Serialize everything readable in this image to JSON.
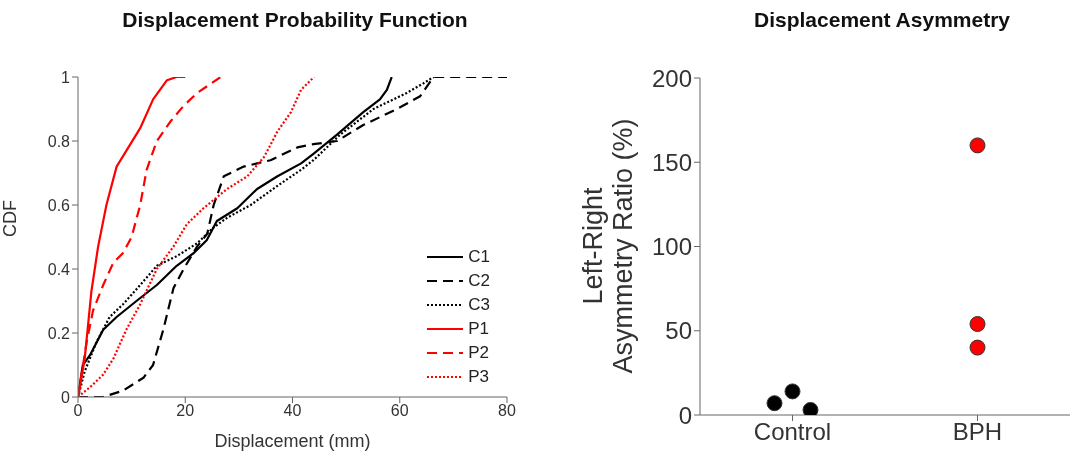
{
  "chart_data": [
    {
      "type": "line",
      "title": "Displacement Probability Function",
      "xlabel": "Displacement (mm)",
      "ylabel": "CDF",
      "xlim": [
        0,
        80
      ],
      "xticks": [
        0,
        20,
        40,
        60,
        80
      ],
      "ylim": [
        0,
        1
      ],
      "yticks": [
        0,
        0.2,
        0.4,
        0.6,
        0.8,
        1
      ],
      "legend": "bottom right",
      "marker": "none",
      "series": [
        {
          "name": "C1",
          "color": "#000000",
          "line_style": "solid",
          "x": [
            0,
            0.9,
            2.2,
            4.7,
            7.2,
            10.9,
            14.7,
            18.4,
            21.6,
            24,
            25.9,
            29.7,
            33.4,
            37.2,
            41.6,
            43.9,
            48.3,
            53.2,
            56.3,
            57.6,
            58.5
          ],
          "values": [
            0,
            0.1,
            0.13,
            0.21,
            0.25,
            0.3,
            0.35,
            0.41,
            0.45,
            0.49,
            0.55,
            0.59,
            0.65,
            0.69,
            0.73,
            0.76,
            0.82,
            0.89,
            0.93,
            0.96,
            1
          ]
        },
        {
          "name": "C2",
          "color": "#000000",
          "line_style": "dashed",
          "x": [
            0,
            4.7,
            8.4,
            12.2,
            14,
            15.9,
            17.8,
            19.7,
            22.2,
            24.1,
            25.3,
            27.2,
            30.9,
            35.9,
            40.9,
            43.9,
            48.3,
            53.2,
            59.5,
            63.8,
            66.3,
            80
          ],
          "values": [
            0,
            0,
            0.02,
            0.06,
            0.1,
            0.21,
            0.34,
            0.4,
            0.47,
            0.51,
            0.6,
            0.69,
            0.72,
            0.74,
            0.78,
            0.79,
            0.8,
            0.85,
            0.9,
            0.94,
            1,
            1
          ]
        },
        {
          "name": "C3",
          "color": "#000000",
          "line_style": "dotted",
          "x": [
            0,
            1.25,
            3.4,
            5.9,
            8.4,
            11.6,
            14.7,
            18.4,
            22.2,
            25.3,
            27.8,
            32.2,
            37.2,
            41.6,
            43.9,
            48.9,
            55.1,
            61.3,
            64.4,
            66.3
          ],
          "values": [
            0,
            0.08,
            0.17,
            0.25,
            0.29,
            0.35,
            0.41,
            0.44,
            0.48,
            0.53,
            0.56,
            0.6,
            0.66,
            0.71,
            0.74,
            0.82,
            0.9,
            0.95,
            0.98,
            1
          ]
        },
        {
          "name": "P1",
          "color": "#ff0000",
          "line_style": "solid",
          "x": [
            0,
            1.25,
            2.5,
            3.75,
            5.3,
            7.2,
            9.4,
            11.6,
            14,
            16.6,
            18.4,
            20
          ],
          "values": [
            0,
            0.12,
            0.33,
            0.47,
            0.6,
            0.72,
            0.78,
            0.84,
            0.93,
            0.99,
            1,
            1
          ]
        },
        {
          "name": "P2",
          "color": "#ff0000",
          "line_style": "dashed",
          "x": [
            0,
            1.6,
            2.8,
            4.7,
            6.6,
            8.4,
            10,
            11.6,
            12.8,
            14.7,
            17.2,
            19.7,
            22.2,
            26.6
          ],
          "values": [
            0,
            0.17,
            0.27,
            0.35,
            0.42,
            0.45,
            0.5,
            0.6,
            0.71,
            0.8,
            0.86,
            0.91,
            0.95,
            1
          ]
        },
        {
          "name": "P3",
          "color": "#ff0000",
          "line_style": "dotted",
          "x": [
            0,
            2.2,
            4.7,
            6.6,
            9,
            11.6,
            14.7,
            17.8,
            20.3,
            23.4,
            27.8,
            31.6,
            34.7,
            37.2,
            39.7,
            41.6,
            44
          ],
          "values": [
            0,
            0.03,
            0.07,
            0.12,
            0.21,
            0.29,
            0.4,
            0.47,
            0.54,
            0.59,
            0.65,
            0.69,
            0.75,
            0.83,
            0.89,
            0.96,
            1
          ]
        }
      ]
    },
    {
      "type": "scatter",
      "title": "Displacement Asymmetry",
      "ylabel": "Left-Right\nAsymmetry Ratio (%)",
      "categories": [
        "Control",
        "BPH"
      ],
      "ylim": [
        0,
        200
      ],
      "yticks": [
        0,
        50,
        100,
        150,
        200
      ],
      "marker": "circle",
      "series": [
        {
          "color": "#000000",
          "x": [
            "Control",
            "Control",
            "Control"
          ],
          "values": [
            7,
            14,
            3
          ]
        },
        {
          "color": "#ff0000",
          "x": [
            "BPH",
            "BPH",
            "BPH"
          ],
          "values": [
            160,
            54,
            40
          ]
        }
      ]
    }
  ]
}
